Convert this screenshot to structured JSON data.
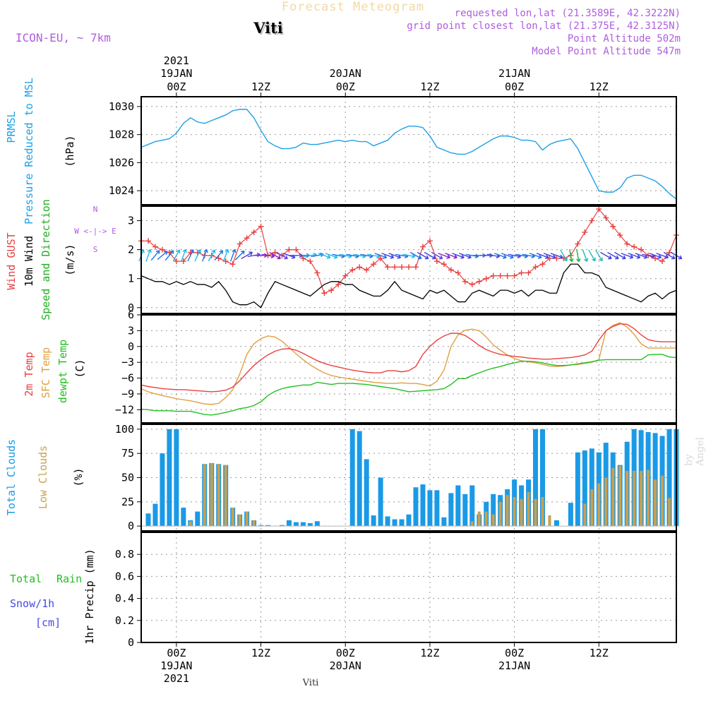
{
  "header": {
    "title": "Forecast Meteogram",
    "place": "Viti",
    "model": "ICON-EU, ~ 7km",
    "requested": "requested lon,lat (21.3589E, 42.3222N)",
    "gridpoint": "grid point closest lon,lat (21.375E, 42.3125N)",
    "point_alt": "Point Altitude 502m",
    "model_alt": "Model Point Altitude 547m",
    "watermark": "by Angel",
    "footer": "Viti"
  },
  "colors": {
    "pressure": "#1ca0e8",
    "gust": "#e84040",
    "wind": "#000000",
    "dir": "#20b020",
    "temp": "#e84040",
    "sfc": "#e0a040",
    "dewpt": "#20c020",
    "cloud_total": "#1a9ae6",
    "cloud_low": "#c8a050",
    "rain": "#20c020",
    "snow": "#4848e8",
    "legend_dir": "#b05ce0",
    "grid": "#999999"
  },
  "chart_data": {
    "type": "line",
    "top_axis": {
      "year": "2021",
      "ticks": [
        {
          "hours": 0,
          "date": "19JAN",
          "label": "00Z"
        },
        {
          "hours": 12,
          "label": "12Z"
        },
        {
          "hours": 24,
          "date": "20JAN",
          "label": "00Z"
        },
        {
          "hours": 36,
          "label": "12Z"
        },
        {
          "hours": 48,
          "date": "21JAN",
          "label": "00Z"
        },
        {
          "hours": 60,
          "label": "12Z"
        }
      ]
    },
    "bottom_axis": {
      "year": "2021",
      "ticks": [
        {
          "hours": 0,
          "date": "19JAN",
          "label": "00Z"
        },
        {
          "hours": 12,
          "label": "12Z"
        },
        {
          "hours": 24,
          "date": "20JAN",
          "label": "00Z"
        },
        {
          "hours": 36,
          "label": "12Z"
        },
        {
          "hours": 48,
          "date": "21JAN",
          "label": "00Z"
        },
        {
          "hours": 60,
          "label": "12Z"
        }
      ]
    },
    "xlim_hours": [
      -5,
      71
    ],
    "panels": [
      {
        "id": "pressure",
        "labels": [
          "PRMSL",
          "Pressure Reduced to MSL",
          "(hPa)"
        ],
        "ylim": [
          1023,
          1030.7
        ],
        "yticks": [
          1024,
          1026,
          1028,
          1030
        ],
        "series": [
          {
            "color_key": "pressure",
            "start": -5,
            "step": 1,
            "values": [
              1027.1,
              1027.3,
              1027.5,
              1027.6,
              1027.7,
              1028.1,
              1028.8,
              1029.2,
              1028.9,
              1028.8,
              1029.0,
              1029.2,
              1029.4,
              1029.7,
              1029.8,
              1029.8,
              1029.2,
              1028.3,
              1027.5,
              1027.2,
              1027.0,
              1027.0,
              1027.1,
              1027.4,
              1027.3,
              1027.3,
              1027.4,
              1027.5,
              1027.6,
              1027.5,
              1027.6,
              1027.5,
              1027.5,
              1027.2,
              1027.4,
              1027.6,
              1028.1,
              1028.4,
              1028.6,
              1028.6,
              1028.5,
              1027.9,
              1027.1,
              1026.9,
              1026.7,
              1026.6,
              1026.6,
              1026.8,
              1027.1,
              1027.4,
              1027.7,
              1027.9,
              1027.9,
              1027.8,
              1027.6,
              1027.6,
              1027.5,
              1026.9,
              1027.3,
              1027.5,
              1027.6,
              1027.7,
              1027.0,
              1026.0,
              1025.0,
              1024.0,
              1023.9,
              1023.9,
              1024.2,
              1024.9,
              1025.1,
              1025.1,
              1024.9,
              1024.7,
              1024.3,
              1023.8,
              1023.4
            ]
          }
        ]
      },
      {
        "id": "wind",
        "labels": [
          "Wind GUST",
          "10m Wind",
          "Speed and Direction",
          "(m/s)"
        ],
        "direction_legend": [
          "N",
          "W <-|-> E",
          "S"
        ],
        "ylim": [
          -0.2,
          3.5
        ],
        "yticks": [
          0,
          1,
          2,
          3
        ],
        "series": [
          {
            "name": "Wind GUST",
            "color_key": "gust",
            "markers": "plus",
            "start": -5,
            "step": 1,
            "values": [
              2.3,
              2.3,
              2.1,
              2.0,
              1.9,
              1.6,
              1.6,
              1.9,
              1.9,
              1.8,
              1.8,
              1.7,
              1.6,
              1.5,
              2.2,
              2.4,
              2.6,
              2.8,
              1.8,
              1.9,
              1.8,
              2.0,
              2.0,
              1.7,
              1.6,
              1.2,
              0.5,
              0.6,
              0.8,
              1.1,
              1.3,
              1.4,
              1.3,
              1.5,
              1.7,
              1.4,
              1.4,
              1.4,
              1.4,
              1.4,
              2.1,
              2.3,
              1.6,
              1.5,
              1.3,
              1.2,
              0.9,
              0.8,
              0.9,
              1.0,
              1.1,
              1.1,
              1.1,
              1.1,
              1.2,
              1.2,
              1.4,
              1.5,
              1.7,
              1.7,
              1.7,
              1.8,
              2.2,
              2.6,
              3.0,
              3.4,
              3.1,
              2.8,
              2.5,
              2.2,
              2.1,
              2.0,
              1.8,
              1.7,
              1.6,
              1.9,
              2.5
            ]
          },
          {
            "name": "10m Wind",
            "color_key": "wind",
            "start": -5,
            "step": 1,
            "values": [
              1.1,
              1.0,
              0.9,
              0.9,
              0.8,
              0.9,
              0.8,
              0.9,
              0.8,
              0.8,
              0.7,
              0.9,
              0.6,
              0.2,
              0.1,
              0.1,
              0.2,
              0.0,
              0.5,
              0.9,
              0.8,
              0.7,
              0.6,
              0.5,
              0.4,
              0.6,
              0.8,
              0.9,
              0.9,
              0.8,
              0.8,
              0.6,
              0.5,
              0.4,
              0.4,
              0.6,
              0.9,
              0.6,
              0.5,
              0.4,
              0.3,
              0.6,
              0.5,
              0.6,
              0.4,
              0.2,
              0.2,
              0.5,
              0.6,
              0.5,
              0.4,
              0.6,
              0.6,
              0.5,
              0.6,
              0.4,
              0.6,
              0.6,
              0.5,
              0.5,
              1.2,
              1.5,
              1.5,
              1.2,
              1.2,
              1.1,
              0.7,
              0.6,
              0.5,
              0.4,
              0.3,
              0.2,
              0.4,
              0.5,
              0.3,
              0.5,
              0.6
            ]
          }
        ],
        "direction_arrows": {
          "start": -5,
          "step": 1,
          "y": 1.8,
          "angles_deg": [
            20,
            20,
            40,
            50,
            40,
            30,
            20,
            25,
            25,
            20,
            30,
            40,
            20,
            20,
            45,
            60,
            80,
            90,
            100,
            120,
            120,
            110,
            90,
            90,
            80,
            80,
            110,
            110,
            100,
            100,
            100,
            100,
            100,
            100,
            110,
            110,
            110,
            100,
            100,
            120,
            120,
            120,
            120,
            110,
            110,
            110,
            110,
            100,
            90,
            90,
            100,
            110,
            110,
            100,
            100,
            100,
            110,
            110,
            110,
            110,
            150,
            170,
            170,
            160,
            150,
            150,
            120,
            120,
            120,
            110,
            110,
            110,
            100,
            110,
            110,
            120,
            120
          ],
          "colors": [
            "#20b8e8",
            "#20b8e8",
            "#2070e8",
            "#2070e8",
            "#2070e8",
            "#20b8e8",
            "#20b8e8",
            "#2070e8",
            "#20b8e8",
            "#2070e8",
            "#20b8e8",
            "#2070e8",
            "#20b8e8",
            "#2070e8",
            "#2070e8",
            "#4040e0",
            "#6040e0",
            "#8020c0",
            "#8020c0",
            "#8020c0",
            "#6040e0",
            "#4040e0",
            "#4040e0",
            "#2070e8",
            "#20b8e8",
            "#2070e8",
            "#20b8e8",
            "#20b8e8",
            "#2070e8",
            "#20b8e8",
            "#2070e8",
            "#20b8e8",
            "#2070e8",
            "#20b8e8",
            "#2070e8",
            "#4040e0",
            "#4040e0",
            "#2070e8",
            "#20b8e8",
            "#2070e8",
            "#4040e0",
            "#4040e0",
            "#6040e0",
            "#8020c0",
            "#8020c0",
            "#4040e0",
            "#4040e0",
            "#2070e8",
            "#2070e8",
            "#4040e0",
            "#4040e0",
            "#2070e8",
            "#2070e8",
            "#4040e0",
            "#2070e8",
            "#2070e8",
            "#2070e8",
            "#4040e0",
            "#4040e0",
            "#4040e0",
            "#20b8b8",
            "#20b040",
            "#20b040",
            "#20b8b8",
            "#20b8b8",
            "#20b8b8",
            "#4040e0",
            "#4040e0",
            "#4040e0",
            "#4040e0",
            "#4040e0",
            "#4040e0",
            "#4040e0",
            "#4040e0",
            "#4040e0",
            "#4040e0",
            "#4040e0"
          ]
        }
      },
      {
        "id": "temperature",
        "labels": [
          "2m Temp",
          "SFC Temp",
          "dewpt Temp",
          "(C)"
        ],
        "ylim": [
          -14.5,
          6
        ],
        "yticks": [
          -12,
          -9,
          -6,
          -3,
          0,
          3,
          6
        ],
        "series": [
          {
            "name": "2m Temp",
            "color_key": "temp",
            "start": -5,
            "step": 1,
            "values": [
              -7.3,
              -7.6,
              -7.8,
              -8.0,
              -8.1,
              -8.2,
              -8.2,
              -8.3,
              -8.4,
              -8.5,
              -8.6,
              -8.5,
              -8.3,
              -7.7,
              -6.5,
              -5.0,
              -3.6,
              -2.5,
              -1.6,
              -0.9,
              -0.5,
              -0.4,
              -0.7,
              -1.3,
              -2.0,
              -2.7,
              -3.2,
              -3.6,
              -3.9,
              -4.2,
              -4.5,
              -4.7,
              -4.9,
              -5.0,
              -5.0,
              -4.6,
              -4.6,
              -4.8,
              -4.6,
              -3.8,
              -1.5,
              0.0,
              1.2,
              2.0,
              2.5,
              2.5,
              2.1,
              1.2,
              0.2,
              -0.6,
              -1.1,
              -1.5,
              -1.7,
              -1.9,
              -2.0,
              -2.2,
              -2.3,
              -2.4,
              -2.4,
              -2.3,
              -2.2,
              -2.1,
              -1.9,
              -1.6,
              -0.9,
              1.2,
              3.0,
              3.8,
              4.3,
              4.2,
              3.4,
              2.2,
              1.3,
              1.0,
              0.9,
              0.9,
              0.9
            ]
          },
          {
            "name": "SFC Temp",
            "color_key": "sfc",
            "start": -5,
            "step": 1,
            "values": [
              -8.0,
              -8.6,
              -9.0,
              -9.3,
              -9.6,
              -9.9,
              -10.1,
              -10.3,
              -10.6,
              -10.9,
              -11.0,
              -10.8,
              -9.7,
              -8.2,
              -5.2,
              -1.5,
              0.5,
              1.5,
              2.0,
              1.8,
              1.0,
              -0.2,
              -1.4,
              -2.5,
              -3.5,
              -4.3,
              -5.0,
              -5.5,
              -5.8,
              -6.0,
              -6.2,
              -6.4,
              -6.6,
              -6.8,
              -6.9,
              -7.0,
              -7.0,
              -6.9,
              -7.0,
              -7.0,
              -7.2,
              -7.5,
              -6.6,
              -4.5,
              0.0,
              2.2,
              3.1,
              3.3,
              3.0,
              1.8,
              0.3,
              -0.7,
              -1.6,
              -2.3,
              -2.7,
              -2.9,
              -3.1,
              -3.4,
              -3.7,
              -3.8,
              -3.7,
              -3.5,
              -3.4,
              -3.2,
              -3.0,
              -2.5,
              3.0,
              4.0,
              4.5,
              3.7,
              2.3,
              0.5,
              -0.3,
              -0.3,
              -0.3,
              -0.3,
              -0.3
            ]
          },
          {
            "name": "dewpt Temp",
            "color_key": "dewpt",
            "start": -5,
            "step": 1,
            "values": [
              -11.9,
              -12.0,
              -12.2,
              -12.2,
              -12.2,
              -12.3,
              -12.3,
              -12.3,
              -12.6,
              -12.9,
              -13.0,
              -12.8,
              -12.5,
              -12.2,
              -11.8,
              -11.6,
              -11.2,
              -10.5,
              -9.3,
              -8.5,
              -8.0,
              -7.7,
              -7.5,
              -7.3,
              -7.3,
              -6.8,
              -7.0,
              -7.2,
              -7.0,
              -7.0,
              -7.0,
              -7.1,
              -7.2,
              -7.4,
              -7.6,
              -7.8,
              -8.0,
              -8.3,
              -8.6,
              -8.5,
              -8.4,
              -8.3,
              -8.2,
              -8.0,
              -7.2,
              -6.1,
              -6.1,
              -5.5,
              -5.0,
              -4.5,
              -4.1,
              -3.8,
              -3.4,
              -3.1,
              -2.8,
              -2.8,
              -2.9,
              -3.1,
              -3.4,
              -3.6,
              -3.6,
              -3.5,
              -3.3,
              -3.1,
              -2.9,
              -2.6,
              -2.5,
              -2.5,
              -2.5,
              -2.5,
              -2.5,
              -2.5,
              -1.6,
              -1.5,
              -1.5,
              -2.0,
              -2.1
            ]
          }
        ]
      },
      {
        "id": "clouds",
        "type": "bar",
        "labels": [
          "Total Clouds",
          "Low Clouds",
          "(%)"
        ],
        "ylim": [
          -5,
          105
        ],
        "yticks": [
          0,
          25,
          50,
          75,
          100
        ],
        "start": -4,
        "step": 1,
        "total": [
          13,
          23,
          75,
          100,
          100,
          19,
          6,
          15,
          64,
          65,
          64,
          63,
          19,
          12,
          15,
          6,
          1,
          1,
          0,
          1,
          6,
          4,
          4,
          3,
          5,
          0,
          0,
          0,
          0,
          100,
          98,
          69,
          11,
          50,
          10,
          7,
          7,
          12,
          40,
          43,
          37,
          37,
          9,
          34,
          42,
          33,
          42,
          12,
          25,
          33,
          32,
          38,
          48,
          42,
          48,
          100,
          100,
          0,
          6,
          0,
          24,
          76,
          78,
          80,
          76,
          86,
          76,
          63,
          87,
          100,
          99,
          97,
          96,
          93,
          100,
          100
        ],
        "low": [
          0,
          0,
          0,
          0,
          0,
          0,
          5,
          0,
          64,
          65,
          64,
          63,
          19,
          12,
          15,
          6,
          0,
          0,
          0,
          0,
          0,
          0,
          0,
          0,
          0,
          0,
          0,
          0,
          0,
          0,
          0,
          0,
          0,
          0,
          0,
          0,
          0,
          0,
          0,
          0,
          0,
          0,
          0,
          0,
          0,
          0,
          5,
          15,
          15,
          12,
          25,
          32,
          30,
          28,
          35,
          28,
          30,
          11,
          0,
          0,
          0,
          0,
          23,
          38,
          44,
          50,
          60,
          62,
          57,
          57,
          57,
          58,
          48,
          52,
          29,
          0
        ]
      },
      {
        "id": "precip",
        "labels": [
          "Total",
          "Rain",
          "Snow/1h",
          "[cm]",
          "1hr Precip (mm)"
        ],
        "ylim": [
          0,
          1.0
        ],
        "yticks": [
          0,
          0.2,
          0.4,
          0.6,
          0.8
        ],
        "ytick_labels": [
          "0",
          "0.2",
          "0.4",
          "0.6",
          "0.8"
        ],
        "total": [],
        "snow": []
      }
    ]
  }
}
